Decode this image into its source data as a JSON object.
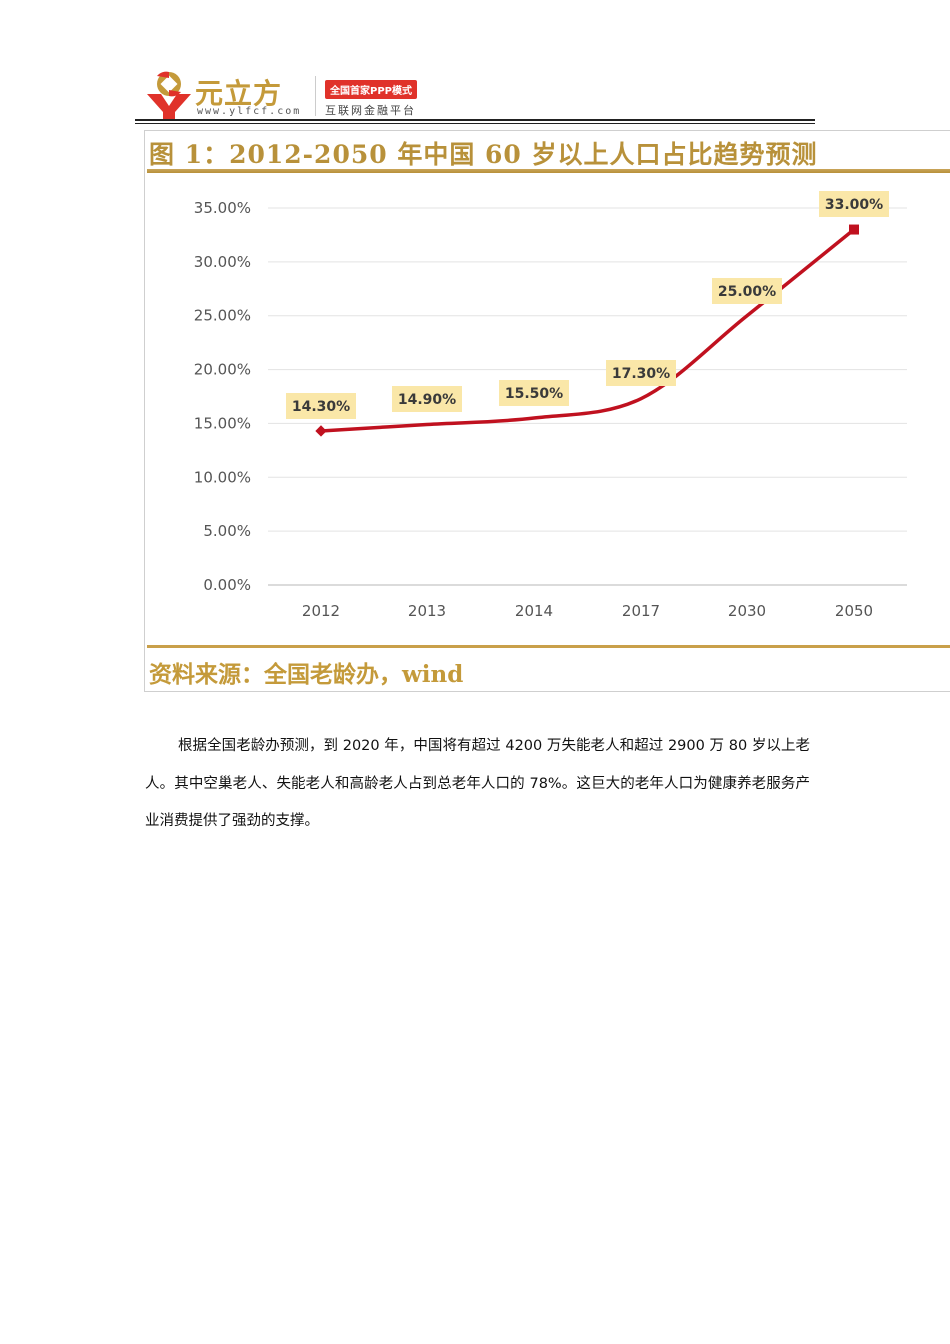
{
  "header": {
    "logo_name": "元立方",
    "logo_url": "www.ylfcf.com",
    "badge": "全国首家PPP模式",
    "slogan": "互联网金融平台",
    "colors": {
      "gold": "#c49a3a",
      "red": "#e0322a"
    }
  },
  "figure": {
    "title": "图 1：2012-2050 年中国 60 岁以上人口占比趋势预测",
    "source": "资料来源：全国老龄办，wind"
  },
  "chart_data": {
    "type": "line",
    "title": "图 1：2012-2050 年中国 60 岁以上人口占比趋势预测",
    "categories": [
      "2012",
      "2013",
      "2014",
      "2017",
      "2030",
      "2050"
    ],
    "series": [
      {
        "name": "60岁以上人口占比",
        "values": [
          14.3,
          14.9,
          15.5,
          17.3,
          25.0,
          33.0
        ],
        "color": "#c0111f"
      }
    ],
    "data_labels": [
      "14.30%",
      "14.90%",
      "15.50%",
      "17.30%",
      "25.00%",
      "33.00%"
    ],
    "yticks": [
      "0.00%",
      "5.00%",
      "10.00%",
      "15.00%",
      "20.00%",
      "25.00%",
      "30.00%",
      "35.00%"
    ],
    "ylim": [
      0,
      35
    ],
    "xlabel": "",
    "ylabel": "",
    "grid": true,
    "legend": "none",
    "smooth": true
  },
  "paragraph": "根据全国老龄办预测，到 2020 年，中国将有超过 4200 万失能老人和超过 2900 万 80 岁以上老人。其中空巢老人、失能老人和高龄老人占到总老年人口的 78%。这巨大的老年人口为健康养老服务产业消费提供了强劲的支撑。"
}
